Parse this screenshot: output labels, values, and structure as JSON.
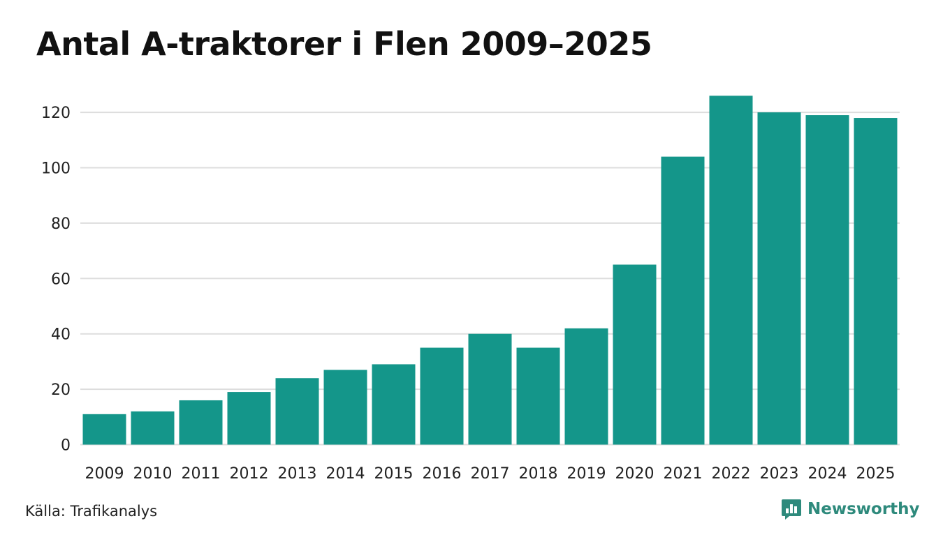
{
  "header": {
    "title": "Antal A-traktorer i Flen 2009–2025"
  },
  "footer": {
    "source": "Källa: Trafikanalys",
    "brand": "Newsworthy",
    "brand_icon": "bar-chart-speech-bubble-icon"
  },
  "colors": {
    "bar": "#14968a",
    "grid": "#dddddd",
    "brand": "#2e8a7c"
  },
  "chart_data": {
    "type": "bar",
    "title": "Antal A-traktorer i Flen 2009–2025",
    "xlabel": "",
    "ylabel": "",
    "categories": [
      "2009",
      "2010",
      "2011",
      "2012",
      "2013",
      "2014",
      "2015",
      "2016",
      "2017",
      "2018",
      "2019",
      "2020",
      "2021",
      "2022",
      "2023",
      "2024",
      "2025"
    ],
    "values": [
      11,
      12,
      16,
      19,
      24,
      27,
      29,
      35,
      40,
      35,
      42,
      65,
      104,
      126,
      120,
      119,
      118
    ],
    "ylim": [
      0,
      126
    ],
    "yticks": [
      0,
      20,
      40,
      60,
      80,
      100,
      120
    ],
    "grid": true,
    "legend": "none"
  }
}
